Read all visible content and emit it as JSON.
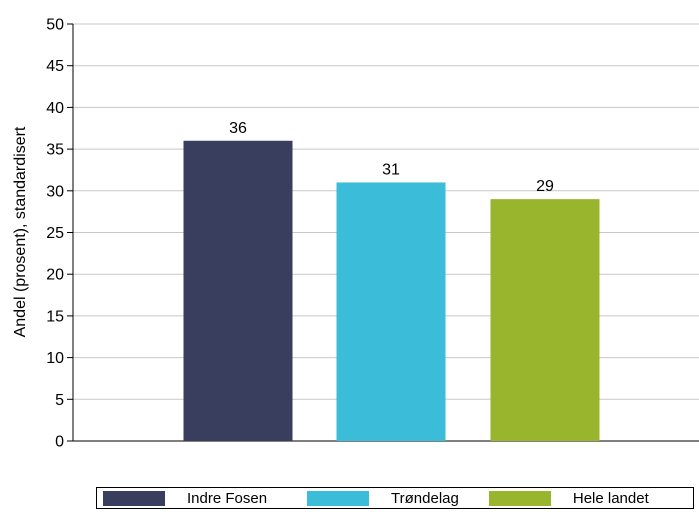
{
  "chart_data": {
    "type": "bar",
    "categories": [
      "Indre Fosen",
      "Trøndelag",
      "Hele landet"
    ],
    "values": [
      36,
      31,
      29
    ],
    "data_labels": [
      "36",
      "31",
      "29"
    ],
    "colors": [
      "#393d5e",
      "#3bbcd8",
      "#99b42d"
    ],
    "xlabel": "",
    "ylabel": "Andel (prosent), standardisert",
    "ylim": [
      0,
      50
    ],
    "yticks": [
      0,
      5,
      10,
      15,
      20,
      25,
      30,
      35,
      40,
      45,
      50
    ],
    "ytick_labels": [
      "0",
      "5",
      "10",
      "15",
      "20",
      "25",
      "30",
      "35",
      "40",
      "45",
      "50"
    ],
    "grid": true,
    "legend_position": "bottom"
  }
}
